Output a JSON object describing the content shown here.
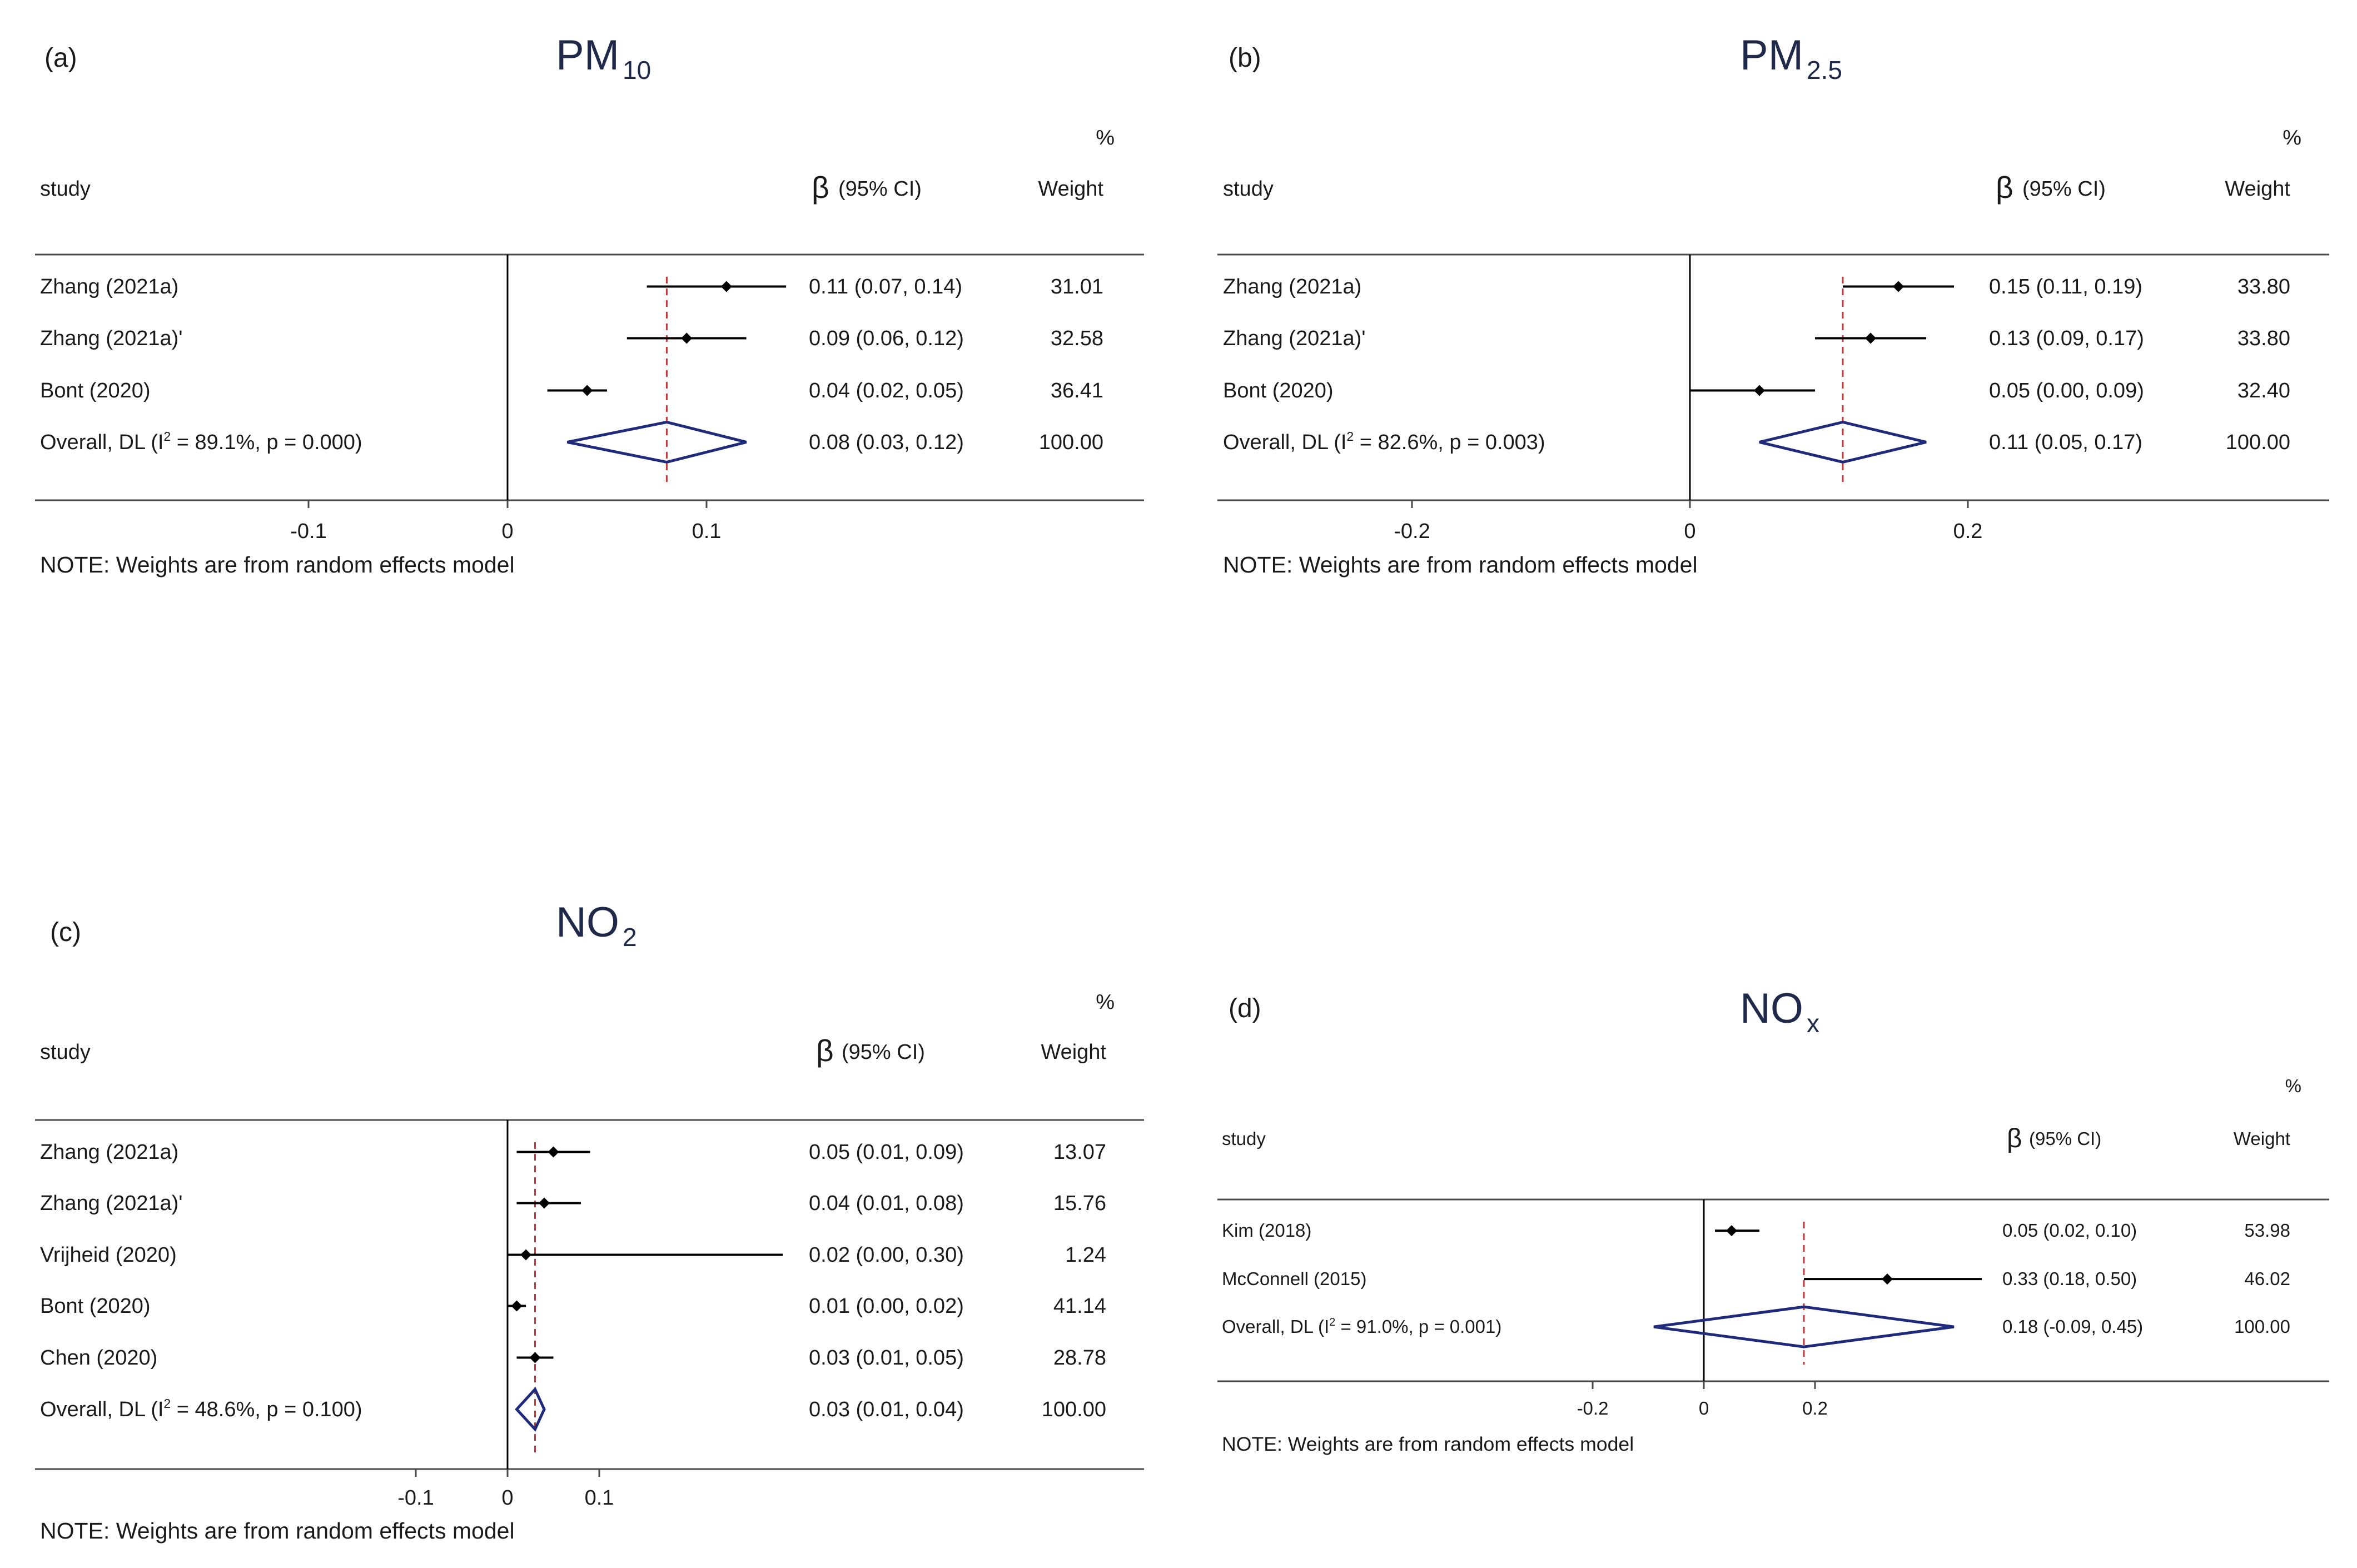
{
  "panels": [
    {
      "id": "a",
      "label": "(a)",
      "title_main": "PM",
      "title_sub": "10",
      "header": {
        "study": "study",
        "beta": "β",
        "ci": "(95% CI)",
        "percent": "%",
        "weight": "Weight"
      },
      "rows": [
        {
          "study": "Zhang (2021a)",
          "est": 0.11,
          "lo": 0.07,
          "hi": 0.14,
          "ci_text": "0.11 (0.07, 0.14)",
          "weight": "31.01"
        },
        {
          "study": "Zhang (2021a)'",
          "est": 0.09,
          "lo": 0.06,
          "hi": 0.12,
          "ci_text": "0.09 (0.06, 0.12)",
          "weight": "32.58"
        },
        {
          "study": "Bont (2020)",
          "est": 0.04,
          "lo": 0.02,
          "hi": 0.05,
          "ci_text": "0.04 (0.02, 0.05)",
          "weight": "36.41"
        }
      ],
      "overall": {
        "prefix": "Overall, DL (I",
        "sup": "2",
        "suffix": " = 89.1%, p = 0.000)",
        "est": 0.08,
        "lo": 0.03,
        "hi": 0.12,
        "ci_text": "0.08 (0.03, 0.12)",
        "weight": "100.00"
      },
      "ticks": [
        {
          "v": -0.1,
          "t": "-0.1"
        },
        {
          "v": 0,
          "t": "0"
        },
        {
          "v": 0.1,
          "t": "0.1"
        }
      ],
      "note": "NOTE: Weights are from random effects model"
    },
    {
      "id": "b",
      "label": "(b)",
      "title_main": "PM",
      "title_sub": "2.5",
      "header": {
        "study": "study",
        "beta": "β",
        "ci": "(95% CI)",
        "percent": "%",
        "weight": "Weight"
      },
      "rows": [
        {
          "study": "Zhang (2021a)",
          "est": 0.15,
          "lo": 0.11,
          "hi": 0.19,
          "ci_text": "0.15 (0.11, 0.19)",
          "weight": "33.80"
        },
        {
          "study": "Zhang (2021a)'",
          "est": 0.13,
          "lo": 0.09,
          "hi": 0.17,
          "ci_text": "0.13 (0.09, 0.17)",
          "weight": "33.80"
        },
        {
          "study": "Bont (2020)",
          "est": 0.05,
          "lo": 0.0,
          "hi": 0.09,
          "ci_text": "0.05 (0.00, 0.09)",
          "weight": "32.40"
        }
      ],
      "overall": {
        "prefix": "Overall, DL (I",
        "sup": "2",
        "suffix": " = 82.6%, p = 0.003)",
        "est": 0.11,
        "lo": 0.05,
        "hi": 0.17,
        "ci_text": "0.11 (0.05, 0.17)",
        "weight": "100.00"
      },
      "ticks": [
        {
          "v": -0.2,
          "t": "-0.2"
        },
        {
          "v": 0,
          "t": "0"
        },
        {
          "v": 0.2,
          "t": "0.2"
        }
      ],
      "note": "NOTE: Weights are from random effects model"
    },
    {
      "id": "c",
      "label": "(c)",
      "title_main": "NO",
      "title_sub": "2",
      "header": {
        "study": "study",
        "beta": "β",
        "ci": "(95% CI)",
        "percent": "%",
        "weight": "Weight"
      },
      "rows": [
        {
          "study": "Zhang (2021a)",
          "est": 0.05,
          "lo": 0.01,
          "hi": 0.09,
          "ci_text": "0.05 (0.01, 0.09)",
          "weight": "13.07"
        },
        {
          "study": "Zhang (2021a)'",
          "est": 0.04,
          "lo": 0.01,
          "hi": 0.08,
          "ci_text": "0.04 (0.01, 0.08)",
          "weight": "15.76"
        },
        {
          "study": "Vrijheid (2020)",
          "est": 0.02,
          "lo": 0.0,
          "hi": 0.3,
          "ci_text": "0.02 (0.00, 0.30)",
          "weight": "1.24"
        },
        {
          "study": "Bont (2020)",
          "est": 0.01,
          "lo": 0.0,
          "hi": 0.02,
          "ci_text": "0.01 (0.00, 0.02)",
          "weight": "41.14"
        },
        {
          "study": "Chen (2020)",
          "est": 0.03,
          "lo": 0.01,
          "hi": 0.05,
          "ci_text": "0.03 (0.01, 0.05)",
          "weight": "28.78"
        }
      ],
      "overall": {
        "prefix": "Overall, DL (I",
        "sup": "2",
        "suffix": " = 48.6%, p = 0.100)",
        "est": 0.03,
        "lo": 0.01,
        "hi": 0.04,
        "ci_text": "0.03 (0.01, 0.04)",
        "weight": "100.00"
      },
      "ticks": [
        {
          "v": -0.1,
          "t": "-0.1"
        },
        {
          "v": 0,
          "t": "0"
        },
        {
          "v": 0.1,
          "t": "0.1"
        }
      ],
      "note": "NOTE: Weights are from random effects model"
    },
    {
      "id": "d",
      "label": "(d)",
      "title_main": "NO",
      "title_sub": "x",
      "header": {
        "study": "study",
        "beta": "β",
        "ci": "(95% CI)",
        "percent": "%",
        "weight": "Weight"
      },
      "rows": [
        {
          "study": "Kim (2018)",
          "est": 0.05,
          "lo": 0.02,
          "hi": 0.1,
          "ci_text": "0.05 (0.02, 0.10)",
          "weight": "53.98"
        },
        {
          "study": "McConnell (2015)",
          "est": 0.33,
          "lo": 0.18,
          "hi": 0.5,
          "ci_text": "0.33 (0.18, 0.50)",
          "weight": "46.02"
        }
      ],
      "overall": {
        "prefix": "Overall, DL (I",
        "sup": "2",
        "suffix": " = 91.0%, p = 0.001)",
        "est": 0.18,
        "lo": -0.09,
        "hi": 0.45,
        "ci_text": "0.18 (-0.09, 0.45)",
        "weight": "100.00"
      },
      "ticks": [
        {
          "v": -0.2,
          "t": "-0.2"
        },
        {
          "v": 0,
          "t": "0"
        },
        {
          "v": 0.2,
          "t": "0.2"
        }
      ],
      "note": "NOTE: Weights are from random effects model"
    }
  ],
  "chart_data": [
    {
      "type": "forest",
      "title": "PM10",
      "xlabel": "β (95% CI)",
      "studies": [
        "Zhang (2021a)",
        "Zhang (2021a)'",
        "Bont (2020)"
      ],
      "estimates": [
        0.11,
        0.09,
        0.04
      ],
      "ci_low": [
        0.07,
        0.06,
        0.02
      ],
      "ci_high": [
        0.14,
        0.12,
        0.05
      ],
      "weights": [
        31.01,
        32.58,
        36.41
      ],
      "overall": {
        "estimate": 0.08,
        "ci": [
          0.03,
          0.12
        ],
        "I2": 89.1,
        "p": 0.0
      },
      "xticks": [
        -0.1,
        0,
        0.1
      ]
    },
    {
      "type": "forest",
      "title": "PM2.5",
      "xlabel": "β (95% CI)",
      "studies": [
        "Zhang (2021a)",
        "Zhang (2021a)'",
        "Bont (2020)"
      ],
      "estimates": [
        0.15,
        0.13,
        0.05
      ],
      "ci_low": [
        0.11,
        0.09,
        0.0
      ],
      "ci_high": [
        0.19,
        0.17,
        0.09
      ],
      "weights": [
        33.8,
        33.8,
        32.4
      ],
      "overall": {
        "estimate": 0.11,
        "ci": [
          0.05,
          0.17
        ],
        "I2": 82.6,
        "p": 0.003
      },
      "xticks": [
        -0.2,
        0,
        0.2
      ]
    },
    {
      "type": "forest",
      "title": "NO2",
      "xlabel": "β (95% CI)",
      "studies": [
        "Zhang (2021a)",
        "Zhang (2021a)'",
        "Vrijheid (2020)",
        "Bont (2020)",
        "Chen (2020)"
      ],
      "estimates": [
        0.05,
        0.04,
        0.02,
        0.01,
        0.03
      ],
      "ci_low": [
        0.01,
        0.01,
        0.0,
        0.0,
        0.01
      ],
      "ci_high": [
        0.09,
        0.08,
        0.3,
        0.02,
        0.05
      ],
      "weights": [
        13.07,
        15.76,
        1.24,
        41.14,
        28.78
      ],
      "overall": {
        "estimate": 0.03,
        "ci": [
          0.01,
          0.04
        ],
        "I2": 48.6,
        "p": 0.1
      },
      "xticks": [
        -0.1,
        0,
        0.1
      ]
    },
    {
      "type": "forest",
      "title": "NOx",
      "xlabel": "β (95% CI)",
      "studies": [
        "Kim (2018)",
        "McConnell (2015)"
      ],
      "estimates": [
        0.05,
        0.33
      ],
      "ci_low": [
        0.02,
        0.18
      ],
      "ci_high": [
        0.1,
        0.5
      ],
      "weights": [
        53.98,
        46.02
      ],
      "overall": {
        "estimate": 0.18,
        "ci": [
          -0.09,
          0.45
        ],
        "I2": 91.0,
        "p": 0.001
      },
      "xticks": [
        -0.2,
        0,
        0.2
      ]
    }
  ]
}
